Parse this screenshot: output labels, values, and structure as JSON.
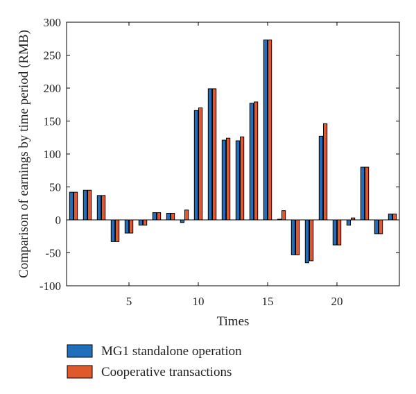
{
  "chart_data": {
    "type": "bar",
    "xlabel": "Times",
    "ylabel": "Comparison of earnings by time period (RMB)",
    "ylim": [
      -100,
      300
    ],
    "yticks": [
      -100,
      -50,
      0,
      50,
      100,
      150,
      200,
      250,
      300
    ],
    "xlim": [
      0.5,
      24.5
    ],
    "xticks": [
      5,
      10,
      15,
      20
    ],
    "x": [
      1,
      2,
      3,
      4,
      5,
      6,
      7,
      8,
      9,
      10,
      11,
      12,
      13,
      14,
      15,
      16,
      17,
      18,
      19,
      20,
      21,
      22,
      23,
      24
    ],
    "series": [
      {
        "name": "MG1 standalone operation",
        "color": "#1f6fba",
        "values": [
          42,
          45,
          37,
          -33,
          -20,
          -8,
          11,
          10,
          -4,
          166,
          199,
          121,
          120,
          177,
          273,
          1,
          -53,
          -65,
          127,
          -38,
          -8,
          80,
          -21,
          9
        ]
      },
      {
        "name": "Cooperative transactions",
        "color": "#e0592b",
        "values": [
          42,
          45,
          37,
          -33,
          -20,
          -8,
          11,
          10,
          15,
          170,
          199,
          124,
          126,
          179,
          273,
          14,
          -53,
          -62,
          146,
          -38,
          3,
          80,
          -21,
          9
        ]
      }
    ],
    "legend_position": "bottom-left",
    "grid": false
  }
}
